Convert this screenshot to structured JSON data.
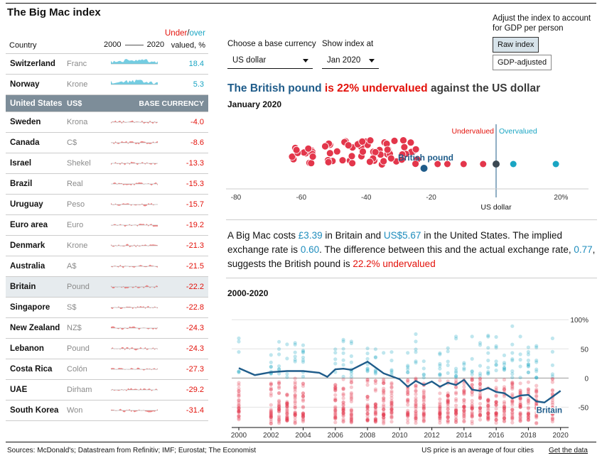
{
  "title": "The Big Mac index",
  "gdp": {
    "note": "Adjust the index to account for GDP per person",
    "raw_label": "Raw index",
    "adjusted_label": "GDP-adjusted"
  },
  "table_header": {
    "country": "Country",
    "year_start": "2000",
    "year_end": "2020",
    "under": "Under",
    "slash": "/",
    "over": "over",
    "valued": "valued, %"
  },
  "base_row": {
    "country": "United States",
    "currency": "US$",
    "tag": "BASE CURRENCY"
  },
  "countries_top": [
    {
      "name": "Switzerland",
      "currency": "Franc",
      "value": "18.4",
      "sign": "pos"
    },
    {
      "name": "Norway",
      "currency": "Krone",
      "value": "5.3",
      "sign": "pos"
    }
  ],
  "countries": [
    {
      "name": "Sweden",
      "currency": "Krona",
      "value": "-4.0",
      "sign": "neg"
    },
    {
      "name": "Canada",
      "currency": "C$",
      "value": "-8.6",
      "sign": "neg"
    },
    {
      "name": "Israel",
      "currency": "Shekel",
      "value": "-13.3",
      "sign": "neg"
    },
    {
      "name": "Brazil",
      "currency": "Real",
      "value": "-15.3",
      "sign": "neg"
    },
    {
      "name": "Uruguay",
      "currency": "Peso",
      "value": "-15.7",
      "sign": "neg"
    },
    {
      "name": "Euro area",
      "currency": "Euro",
      "value": "-19.2",
      "sign": "neg"
    },
    {
      "name": "Denmark",
      "currency": "Krone",
      "value": "-21.3",
      "sign": "neg"
    },
    {
      "name": "Australia",
      "currency": "A$",
      "value": "-21.5",
      "sign": "neg"
    },
    {
      "name": "Britain",
      "currency": "Pound",
      "value": "-22.2",
      "sign": "neg",
      "selected": true
    },
    {
      "name": "Singapore",
      "currency": "S$",
      "value": "-22.8",
      "sign": "neg"
    },
    {
      "name": "New Zealand",
      "currency": "NZ$",
      "value": "-24.3",
      "sign": "neg"
    },
    {
      "name": "Lebanon",
      "currency": "Pound",
      "value": "-24.3",
      "sign": "neg"
    },
    {
      "name": "Costa Rica",
      "currency": "Colón",
      "value": "-27.3",
      "sign": "neg"
    },
    {
      "name": "UAE",
      "currency": "Dirham",
      "value": "-29.2",
      "sign": "neg"
    },
    {
      "name": "South Korea",
      "currency": "Won",
      "value": "-31.4",
      "sign": "neg"
    }
  ],
  "controls": {
    "base_label": "Choose a base currency",
    "base_value": "US dollar",
    "date_label": "Show index at",
    "date_value": "Jan 2020"
  },
  "headline": {
    "currency": "The British pound",
    "verdict": "is 22% undervalued",
    "rest": "against the US dollar"
  },
  "date_sub": "January 2020",
  "dotplot": {
    "under_label": "Undervalued",
    "over_label": "Overvalued",
    "highlight_label": "British pound",
    "base_label": "US dollar",
    "ticks": [
      "-80",
      "-60",
      "-40",
      "-20",
      "20%"
    ]
  },
  "paragraph": {
    "p1": "A Big Mac costs ",
    "uk_price": "£3.39",
    "p2": " in Britain and ",
    "us_price": "US$5.67",
    "p3": " in the United States. The implied exchange rate is ",
    "implied": "0.60",
    "p4": ". The difference between this and the actual exchange rate, ",
    "actual": "0.77",
    "p5": ", suggests the British pound is ",
    "verdict": "22.2% undervalued"
  },
  "range_label": "2000-2020",
  "chart_data": {
    "type": "line",
    "title": "2000-2020",
    "xlabel": "",
    "ylabel": "",
    "x_ticks": [
      "2000",
      "2002",
      "2004",
      "2006",
      "2008",
      "2010",
      "2012",
      "2014",
      "2016",
      "2018",
      "2020"
    ],
    "y_ticks": [
      "100%",
      "50",
      "0",
      "-50"
    ],
    "ylim": [
      -80,
      110
    ],
    "xlim": [
      2000,
      2020.5
    ],
    "series_label": "Britain",
    "series": [
      {
        "name": "Britain",
        "x": [
          2000,
          2001,
          2002,
          2003,
          2004,
          2005,
          2005.5,
          2006,
          2006.5,
          2007,
          2008,
          2009,
          2010,
          2010.5,
          2011,
          2011.5,
          2012,
          2012.5,
          2013,
          2013.5,
          2014,
          2014.5,
          2015,
          2015.5,
          2016,
          2016.5,
          2017,
          2017.5,
          2018,
          2018.5,
          2019,
          2019.5,
          2020
        ],
        "values": [
          17,
          5,
          10,
          12,
          12,
          9,
          2,
          15,
          16,
          14,
          28,
          8,
          -2,
          -15,
          -5,
          -12,
          -6,
          -15,
          -8,
          -12,
          -3,
          -20,
          -22,
          -17,
          -24,
          -26,
          -35,
          -30,
          -29,
          -40,
          -42,
          -32,
          -22
        ]
      }
    ]
  },
  "footer": {
    "sources": "Sources: McDonald's; Datastream from Refinitiv; IMF; Eurostat; The Economist",
    "note": "US price is an average of four cities",
    "link": "Get the data"
  },
  "colors": {
    "red": "#e3120b",
    "blue": "#1aa5c3",
    "navy": "#1f5c8a",
    "base": "#7d8d99"
  }
}
